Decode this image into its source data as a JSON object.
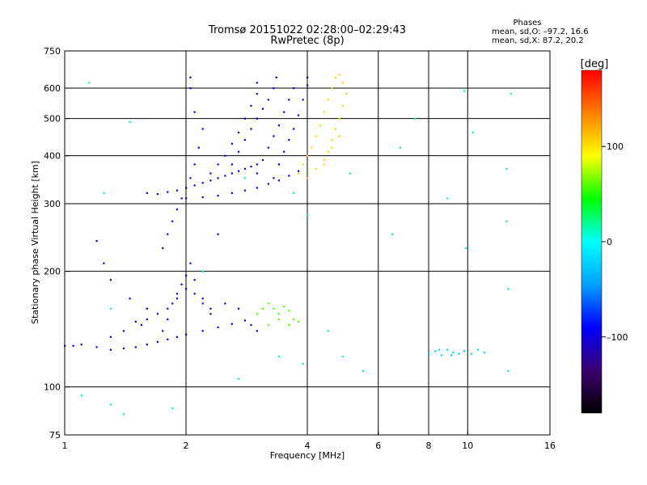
{
  "header": {
    "title_line1": "Tromsø 20151022 02:28:00–02:29:43",
    "title_line2": "RwPretec (8p)",
    "phase_title": "Phases",
    "phase_o": "mean, sd,O: –97.2, 16.6",
    "phase_x": "mean, sd,X:  87.2, 20.2"
  },
  "colorbar": {
    "label": "[deg]",
    "ticks": [
      {
        "value": 100,
        "label": "100"
      },
      {
        "value": 0,
        "label": "0"
      },
      {
        "value": -100,
        "label": "–100"
      }
    ],
    "range": [
      -180,
      180
    ],
    "colors": [
      "#000000",
      "#3c0070",
      "#0000ff",
      "#00a0ff",
      "#00ffff",
      "#00ff00",
      "#ffff00",
      "#ff8000",
      "#ff0000"
    ]
  },
  "chart_data": {
    "type": "scatter",
    "title": "Tromsø 20151022 02:28:00–02:29:43",
    "subtitle": "RwPretec (8p)",
    "xlabel": "Frequency [MHz]",
    "ylabel": "Stationary phase Virtual Height [km]",
    "xscale": "log",
    "yscale": "log",
    "xlim": [
      1,
      16
    ],
    "ylim": [
      75,
      750
    ],
    "x_ticks": [
      1,
      2,
      4,
      6,
      8,
      10,
      16
    ],
    "y_ticks": [
      75,
      100,
      200,
      300,
      400,
      500,
      600,
      750
    ],
    "grid_x": [
      2,
      4,
      6,
      8,
      10
    ],
    "grid_y": [
      100,
      200,
      300,
      400,
      500,
      600
    ],
    "series": [
      {
        "color_phase": -100,
        "points": [
          [
            1.0,
            128
          ],
          [
            1.05,
            128
          ],
          [
            1.1,
            129
          ],
          [
            1.2,
            127
          ],
          [
            1.3,
            125
          ],
          [
            1.4,
            126
          ],
          [
            1.5,
            127
          ],
          [
            1.6,
            129
          ],
          [
            1.7,
            131
          ],
          [
            1.8,
            133
          ],
          [
            1.9,
            135
          ],
          [
            2.0,
            137
          ],
          [
            2.2,
            140
          ],
          [
            2.4,
            143
          ],
          [
            2.6,
            146
          ],
          [
            2.8,
            149
          ],
          [
            1.3,
            135
          ],
          [
            1.4,
            140
          ],
          [
            1.5,
            148
          ],
          [
            1.6,
            150
          ],
          [
            1.7,
            155
          ],
          [
            1.8,
            160
          ],
          [
            1.9,
            170
          ],
          [
            2.0,
            180
          ],
          [
            2.1,
            175
          ],
          [
            2.2,
            165
          ],
          [
            2.3,
            160
          ],
          [
            2.5,
            165
          ],
          [
            2.7,
            160
          ],
          [
            1.75,
            140
          ],
          [
            1.8,
            150
          ],
          [
            1.85,
            165
          ],
          [
            1.9,
            175
          ],
          [
            1.95,
            185
          ],
          [
            2.0,
            195
          ],
          [
            2.05,
            210
          ],
          [
            2.1,
            190
          ],
          [
            2.2,
            170
          ],
          [
            2.3,
            155
          ],
          [
            1.75,
            230
          ],
          [
            1.8,
            250
          ],
          [
            1.85,
            270
          ],
          [
            1.9,
            290
          ],
          [
            1.95,
            310
          ],
          [
            2.0,
            330
          ],
          [
            2.05,
            350
          ],
          [
            2.1,
            380
          ],
          [
            2.15,
            420
          ],
          [
            2.2,
            470
          ],
          [
            2.1,
            520
          ],
          [
            2.05,
            600
          ],
          [
            2.05,
            640
          ],
          [
            1.6,
            320
          ],
          [
            1.7,
            318
          ],
          [
            1.8,
            322
          ],
          [
            1.9,
            325
          ],
          [
            2.0,
            330
          ],
          [
            2.1,
            335
          ],
          [
            2.2,
            340
          ],
          [
            2.3,
            345
          ],
          [
            2.4,
            350
          ],
          [
            2.5,
            355
          ],
          [
            2.6,
            360
          ],
          [
            2.7,
            365
          ],
          [
            2.8,
            370
          ],
          [
            2.9,
            375
          ],
          [
            3.0,
            380
          ],
          [
            2.0,
            310
          ],
          [
            2.2,
            312
          ],
          [
            2.4,
            315
          ],
          [
            2.6,
            320
          ],
          [
            2.8,
            325
          ],
          [
            3.0,
            330
          ],
          [
            3.2,
            338
          ],
          [
            3.4,
            345
          ],
          [
            3.6,
            355
          ],
          [
            3.8,
            365
          ],
          [
            2.3,
            360
          ],
          [
            2.4,
            380
          ],
          [
            2.5,
            400
          ],
          [
            2.6,
            430
          ],
          [
            2.7,
            460
          ],
          [
            2.8,
            500
          ],
          [
            2.9,
            540
          ],
          [
            3.0,
            580
          ],
          [
            3.0,
            620
          ],
          [
            2.6,
            380
          ],
          [
            2.7,
            410
          ],
          [
            2.8,
            440
          ],
          [
            2.9,
            470
          ],
          [
            3.0,
            500
          ],
          [
            3.1,
            530
          ],
          [
            3.2,
            560
          ],
          [
            3.3,
            600
          ],
          [
            3.35,
            640
          ],
          [
            3.0,
            360
          ],
          [
            3.1,
            390
          ],
          [
            3.2,
            420
          ],
          [
            3.3,
            450
          ],
          [
            3.4,
            480
          ],
          [
            3.5,
            520
          ],
          [
            3.6,
            560
          ],
          [
            3.7,
            600
          ],
          [
            3.3,
            350
          ],
          [
            3.4,
            380
          ],
          [
            3.5,
            410
          ],
          [
            3.6,
            440
          ],
          [
            3.7,
            470
          ],
          [
            3.8,
            510
          ],
          [
            3.9,
            560
          ],
          [
            4.0,
            610
          ],
          [
            4.0,
            640
          ],
          [
            1.2,
            240
          ],
          [
            1.25,
            210
          ],
          [
            1.3,
            190
          ],
          [
            1.55,
            145
          ],
          [
            1.6,
            160
          ],
          [
            2.4,
            250
          ],
          [
            1.45,
            170
          ],
          [
            3.0,
            140
          ],
          [
            2.9,
            145
          ]
        ]
      },
      {
        "color_phase": 60,
        "points": [
          [
            3.0,
            155
          ],
          [
            3.1,
            160
          ],
          [
            3.2,
            165
          ],
          [
            3.3,
            160
          ],
          [
            3.4,
            155
          ],
          [
            3.5,
            162
          ],
          [
            3.6,
            158
          ],
          [
            3.7,
            150
          ],
          [
            3.8,
            148
          ],
          [
            3.2,
            145
          ],
          [
            3.4,
            150
          ],
          [
            3.6,
            145
          ]
        ]
      },
      {
        "color_phase": 105,
        "points": [
          [
            3.8,
            360
          ],
          [
            3.9,
            380
          ],
          [
            4.0,
            400
          ],
          [
            4.1,
            420
          ],
          [
            4.2,
            450
          ],
          [
            4.3,
            480
          ],
          [
            4.4,
            520
          ],
          [
            4.5,
            560
          ],
          [
            4.6,
            600
          ],
          [
            4.7,
            640
          ],
          [
            4.4,
            380
          ],
          [
            4.5,
            410
          ],
          [
            4.6,
            440
          ],
          [
            4.7,
            470
          ],
          [
            4.8,
            500
          ],
          [
            4.9,
            540
          ],
          [
            5.0,
            580
          ],
          [
            4.9,
            620
          ],
          [
            4.8,
            650
          ],
          [
            4.0,
            350
          ],
          [
            4.2,
            370
          ],
          [
            4.4,
            390
          ],
          [
            4.6,
            420
          ],
          [
            4.8,
            450
          ]
        ]
      },
      {
        "color_phase": -20,
        "points": [
          [
            8.0,
            122
          ],
          [
            8.3,
            124
          ],
          [
            8.6,
            121
          ],
          [
            8.9,
            125
          ],
          [
            9.2,
            123
          ],
          [
            9.5,
            122
          ],
          [
            9.8,
            124
          ],
          [
            10.2,
            122
          ],
          [
            10.6,
            125
          ],
          [
            11.0,
            123
          ],
          [
            8.5,
            125
          ],
          [
            9.1,
            121
          ]
        ]
      },
      {
        "color_phase": 20,
        "points": [
          [
            1.15,
            620
          ],
          [
            1.45,
            490
          ],
          [
            1.3,
            160
          ],
          [
            1.25,
            320
          ],
          [
            2.2,
            200
          ],
          [
            2.8,
            350
          ],
          [
            3.7,
            320
          ],
          [
            4.0,
            280
          ],
          [
            4.5,
            140
          ],
          [
            5.1,
            360
          ],
          [
            6.8,
            420
          ],
          [
            6.5,
            250
          ],
          [
            7.4,
            500
          ],
          [
            8.9,
            310
          ],
          [
            9.8,
            590
          ],
          [
            10.3,
            460
          ],
          [
            12.5,
            370
          ],
          [
            12.5,
            270
          ],
          [
            12.6,
            180
          ],
          [
            12.8,
            580
          ],
          [
            12.6,
            110
          ],
          [
            1.1,
            95
          ],
          [
            1.3,
            90
          ],
          [
            1.4,
            85
          ],
          [
            1.85,
            88
          ],
          [
            2.7,
            105
          ],
          [
            3.4,
            120
          ],
          [
            3.9,
            115
          ],
          [
            4.9,
            120
          ],
          [
            5.5,
            110
          ],
          [
            9.9,
            230
          ]
        ]
      }
    ]
  }
}
